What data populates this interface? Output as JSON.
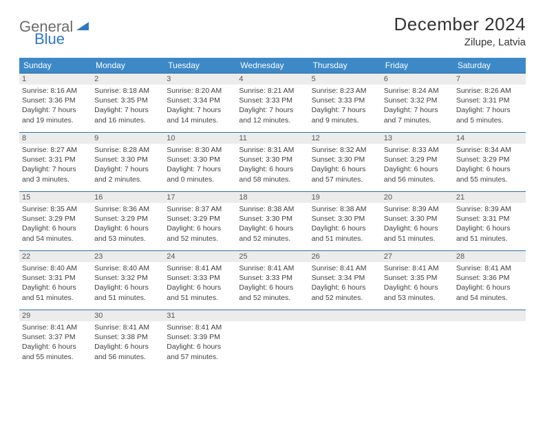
{
  "logo": {
    "general": "General",
    "blue": "Blue",
    "tri_color": "#2f78bf"
  },
  "title": "December 2024",
  "location": "Zilupe, Latvia",
  "colors": {
    "header_bg": "#3d89c8",
    "header_text": "#ffffff",
    "cell_border": "#2f6fa9",
    "daynum_bg": "#ececec",
    "text": "#3f3f3f"
  },
  "weekdays": [
    "Sunday",
    "Monday",
    "Tuesday",
    "Wednesday",
    "Thursday",
    "Friday",
    "Saturday"
  ],
  "weeks": [
    [
      {
        "n": "1",
        "sr": "Sunrise: 8:16 AM",
        "ss": "Sunset: 3:36 PM",
        "dl": "Daylight: 7 hours and 19 minutes."
      },
      {
        "n": "2",
        "sr": "Sunrise: 8:18 AM",
        "ss": "Sunset: 3:35 PM",
        "dl": "Daylight: 7 hours and 16 minutes."
      },
      {
        "n": "3",
        "sr": "Sunrise: 8:20 AM",
        "ss": "Sunset: 3:34 PM",
        "dl": "Daylight: 7 hours and 14 minutes."
      },
      {
        "n": "4",
        "sr": "Sunrise: 8:21 AM",
        "ss": "Sunset: 3:33 PM",
        "dl": "Daylight: 7 hours and 12 minutes."
      },
      {
        "n": "5",
        "sr": "Sunrise: 8:23 AM",
        "ss": "Sunset: 3:33 PM",
        "dl": "Daylight: 7 hours and 9 minutes."
      },
      {
        "n": "6",
        "sr": "Sunrise: 8:24 AM",
        "ss": "Sunset: 3:32 PM",
        "dl": "Daylight: 7 hours and 7 minutes."
      },
      {
        "n": "7",
        "sr": "Sunrise: 8:26 AM",
        "ss": "Sunset: 3:31 PM",
        "dl": "Daylight: 7 hours and 5 minutes."
      }
    ],
    [
      {
        "n": "8",
        "sr": "Sunrise: 8:27 AM",
        "ss": "Sunset: 3:31 PM",
        "dl": "Daylight: 7 hours and 3 minutes."
      },
      {
        "n": "9",
        "sr": "Sunrise: 8:28 AM",
        "ss": "Sunset: 3:30 PM",
        "dl": "Daylight: 7 hours and 2 minutes."
      },
      {
        "n": "10",
        "sr": "Sunrise: 8:30 AM",
        "ss": "Sunset: 3:30 PM",
        "dl": "Daylight: 7 hours and 0 minutes."
      },
      {
        "n": "11",
        "sr": "Sunrise: 8:31 AM",
        "ss": "Sunset: 3:30 PM",
        "dl": "Daylight: 6 hours and 58 minutes."
      },
      {
        "n": "12",
        "sr": "Sunrise: 8:32 AM",
        "ss": "Sunset: 3:30 PM",
        "dl": "Daylight: 6 hours and 57 minutes."
      },
      {
        "n": "13",
        "sr": "Sunrise: 8:33 AM",
        "ss": "Sunset: 3:29 PM",
        "dl": "Daylight: 6 hours and 56 minutes."
      },
      {
        "n": "14",
        "sr": "Sunrise: 8:34 AM",
        "ss": "Sunset: 3:29 PM",
        "dl": "Daylight: 6 hours and 55 minutes."
      }
    ],
    [
      {
        "n": "15",
        "sr": "Sunrise: 8:35 AM",
        "ss": "Sunset: 3:29 PM",
        "dl": "Daylight: 6 hours and 54 minutes."
      },
      {
        "n": "16",
        "sr": "Sunrise: 8:36 AM",
        "ss": "Sunset: 3:29 PM",
        "dl": "Daylight: 6 hours and 53 minutes."
      },
      {
        "n": "17",
        "sr": "Sunrise: 8:37 AM",
        "ss": "Sunset: 3:29 PM",
        "dl": "Daylight: 6 hours and 52 minutes."
      },
      {
        "n": "18",
        "sr": "Sunrise: 8:38 AM",
        "ss": "Sunset: 3:30 PM",
        "dl": "Daylight: 6 hours and 52 minutes."
      },
      {
        "n": "19",
        "sr": "Sunrise: 8:38 AM",
        "ss": "Sunset: 3:30 PM",
        "dl": "Daylight: 6 hours and 51 minutes."
      },
      {
        "n": "20",
        "sr": "Sunrise: 8:39 AM",
        "ss": "Sunset: 3:30 PM",
        "dl": "Daylight: 6 hours and 51 minutes."
      },
      {
        "n": "21",
        "sr": "Sunrise: 8:39 AM",
        "ss": "Sunset: 3:31 PM",
        "dl": "Daylight: 6 hours and 51 minutes."
      }
    ],
    [
      {
        "n": "22",
        "sr": "Sunrise: 8:40 AM",
        "ss": "Sunset: 3:31 PM",
        "dl": "Daylight: 6 hours and 51 minutes."
      },
      {
        "n": "23",
        "sr": "Sunrise: 8:40 AM",
        "ss": "Sunset: 3:32 PM",
        "dl": "Daylight: 6 hours and 51 minutes."
      },
      {
        "n": "24",
        "sr": "Sunrise: 8:41 AM",
        "ss": "Sunset: 3:33 PM",
        "dl": "Daylight: 6 hours and 51 minutes."
      },
      {
        "n": "25",
        "sr": "Sunrise: 8:41 AM",
        "ss": "Sunset: 3:33 PM",
        "dl": "Daylight: 6 hours and 52 minutes."
      },
      {
        "n": "26",
        "sr": "Sunrise: 8:41 AM",
        "ss": "Sunset: 3:34 PM",
        "dl": "Daylight: 6 hours and 52 minutes."
      },
      {
        "n": "27",
        "sr": "Sunrise: 8:41 AM",
        "ss": "Sunset: 3:35 PM",
        "dl": "Daylight: 6 hours and 53 minutes."
      },
      {
        "n": "28",
        "sr": "Sunrise: 8:41 AM",
        "ss": "Sunset: 3:36 PM",
        "dl": "Daylight: 6 hours and 54 minutes."
      }
    ],
    [
      {
        "n": "29",
        "sr": "Sunrise: 8:41 AM",
        "ss": "Sunset: 3:37 PM",
        "dl": "Daylight: 6 hours and 55 minutes."
      },
      {
        "n": "30",
        "sr": "Sunrise: 8:41 AM",
        "ss": "Sunset: 3:38 PM",
        "dl": "Daylight: 6 hours and 56 minutes."
      },
      {
        "n": "31",
        "sr": "Sunrise: 8:41 AM",
        "ss": "Sunset: 3:39 PM",
        "dl": "Daylight: 6 hours and 57 minutes."
      },
      null,
      null,
      null,
      null
    ]
  ]
}
